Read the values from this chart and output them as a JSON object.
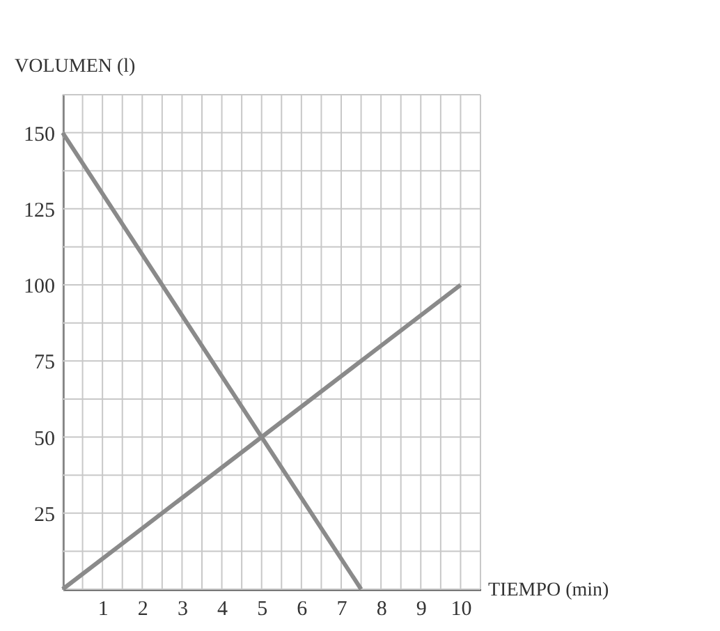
{
  "chart_data": {
    "type": "line",
    "xlabel": "TIEMPO (min)",
    "ylabel": "VOLUMEN (l)",
    "series": [
      {
        "color": "#8a8a8a",
        "x": [
          0,
          7.5
        ],
        "values": [
          150,
          0
        ]
      },
      {
        "color": "#8a8a8a",
        "x": [
          0,
          10
        ],
        "values": [
          0,
          100
        ]
      }
    ],
    "xlim": [
      0,
      10.5
    ],
    "ylim": [
      0,
      162.5
    ],
    "xticks": [
      {
        "value": 0,
        "label": null
      },
      {
        "value": 0.5,
        "label": null
      },
      1,
      {
        "value": 1.5,
        "label": null
      },
      2,
      {
        "value": 2.5,
        "label": null
      },
      3,
      {
        "value": 3.5,
        "label": null
      },
      4,
      {
        "value": 4.5,
        "label": null
      },
      5,
      {
        "value": 5.5,
        "label": null
      },
      6,
      {
        "value": 6.5,
        "label": null
      },
      7,
      {
        "value": 7.5,
        "label": null
      },
      8,
      {
        "value": 8.5,
        "label": null
      },
      9,
      {
        "value": 9.5,
        "label": null
      },
      10,
      {
        "value": 10.5,
        "label": null
      }
    ],
    "yticks": [
      {
        "value": 0,
        "label": null
      },
      {
        "value": 12.5,
        "label": null
      },
      25,
      {
        "value": 37.5,
        "label": null
      },
      50,
      {
        "value": 62.5,
        "label": null
      },
      75,
      {
        "value": 87.5,
        "label": null
      },
      100,
      {
        "value": 112.5,
        "label": null
      },
      125,
      {
        "value": 137.5,
        "label": null
      },
      150,
      {
        "value": 162.5,
        "label": null
      }
    ],
    "grid": true,
    "legend": false,
    "marker": "none",
    "line_style": "solid"
  }
}
